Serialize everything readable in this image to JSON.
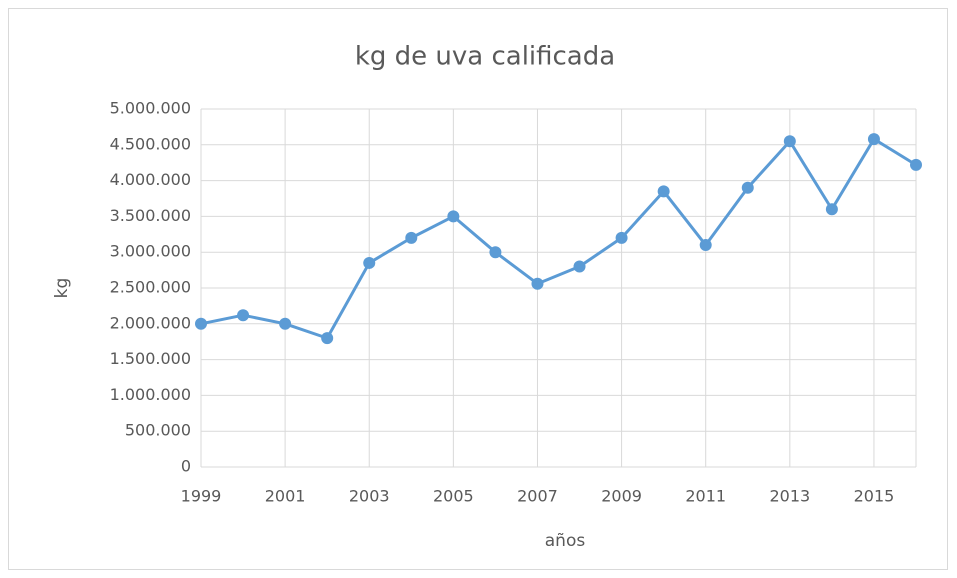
{
  "chart_data": {
    "type": "line",
    "title": "kg de uva calificada",
    "x_label": "años",
    "y_label": "kg",
    "x": [
      1999,
      2000,
      2001,
      2002,
      2003,
      2004,
      2005,
      2006,
      2007,
      2008,
      2009,
      2010,
      2011,
      2012,
      2013,
      2014,
      2015,
      2016
    ],
    "series": [
      {
        "name": "kg",
        "color": "#5b9bd5",
        "values": [
          2000000,
          2120000,
          2000000,
          1800000,
          2850000,
          3200000,
          3500000,
          3000000,
          2560000,
          2800000,
          3200000,
          3850000,
          3100000,
          3900000,
          4550000,
          3600000,
          4580000,
          4220000
        ]
      }
    ],
    "xlim": [
      1999,
      2016
    ],
    "xticks": [
      1999,
      2001,
      2003,
      2005,
      2007,
      2009,
      2011,
      2013,
      2015
    ],
    "ylim": [
      0,
      5000000
    ],
    "yticks": [
      0,
      {
        "value": 500000,
        "label": "500.000"
      },
      {
        "value": 1000000,
        "label": "1.000.000"
      },
      {
        "value": 1500000,
        "label": "1.500.000"
      },
      {
        "value": 2000000,
        "label": "2.000.000"
      },
      {
        "value": 2500000,
        "label": "2.500.000"
      },
      {
        "value": 3000000,
        "label": "3.000.000"
      },
      {
        "value": 3500000,
        "label": "3.500.000"
      },
      {
        "value": 4000000,
        "label": "4.000.000"
      },
      {
        "value": 4500000,
        "label": "4.500.000"
      },
      {
        "value": 5000000,
        "label": "5.000.000"
      }
    ],
    "grid": true
  }
}
